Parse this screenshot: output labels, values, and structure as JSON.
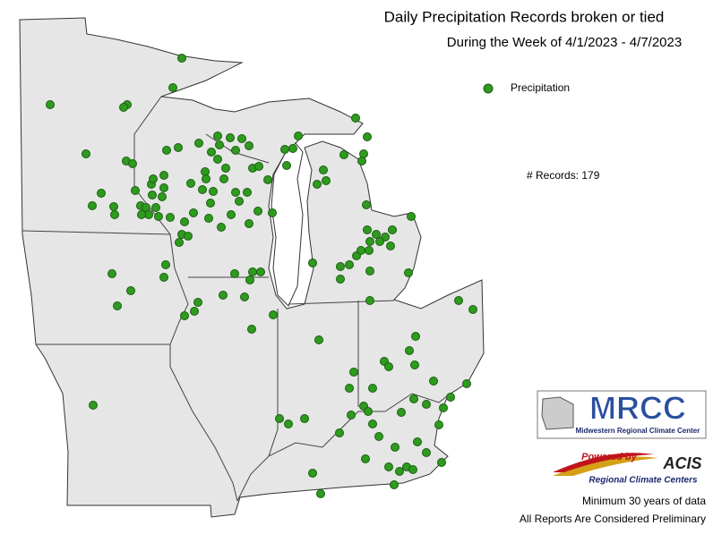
{
  "header": {
    "title": "Daily Precipitation Records broken or tied",
    "subtitle": "During the Week of 4/1/2023 - 4/7/2023"
  },
  "legend": {
    "label": "Precipitation",
    "records": "# Records: 179"
  },
  "logos": {
    "mrcc": "MRCC",
    "mrcc_name": "Midwestern Regional Climate Center",
    "powered": "Powered by",
    "acis": "ACIS",
    "rcc": "Regional Climate Centers"
  },
  "notes": [
    "Minimum 30 years of data",
    "All Reports Are Considered Preliminary"
  ]
}
